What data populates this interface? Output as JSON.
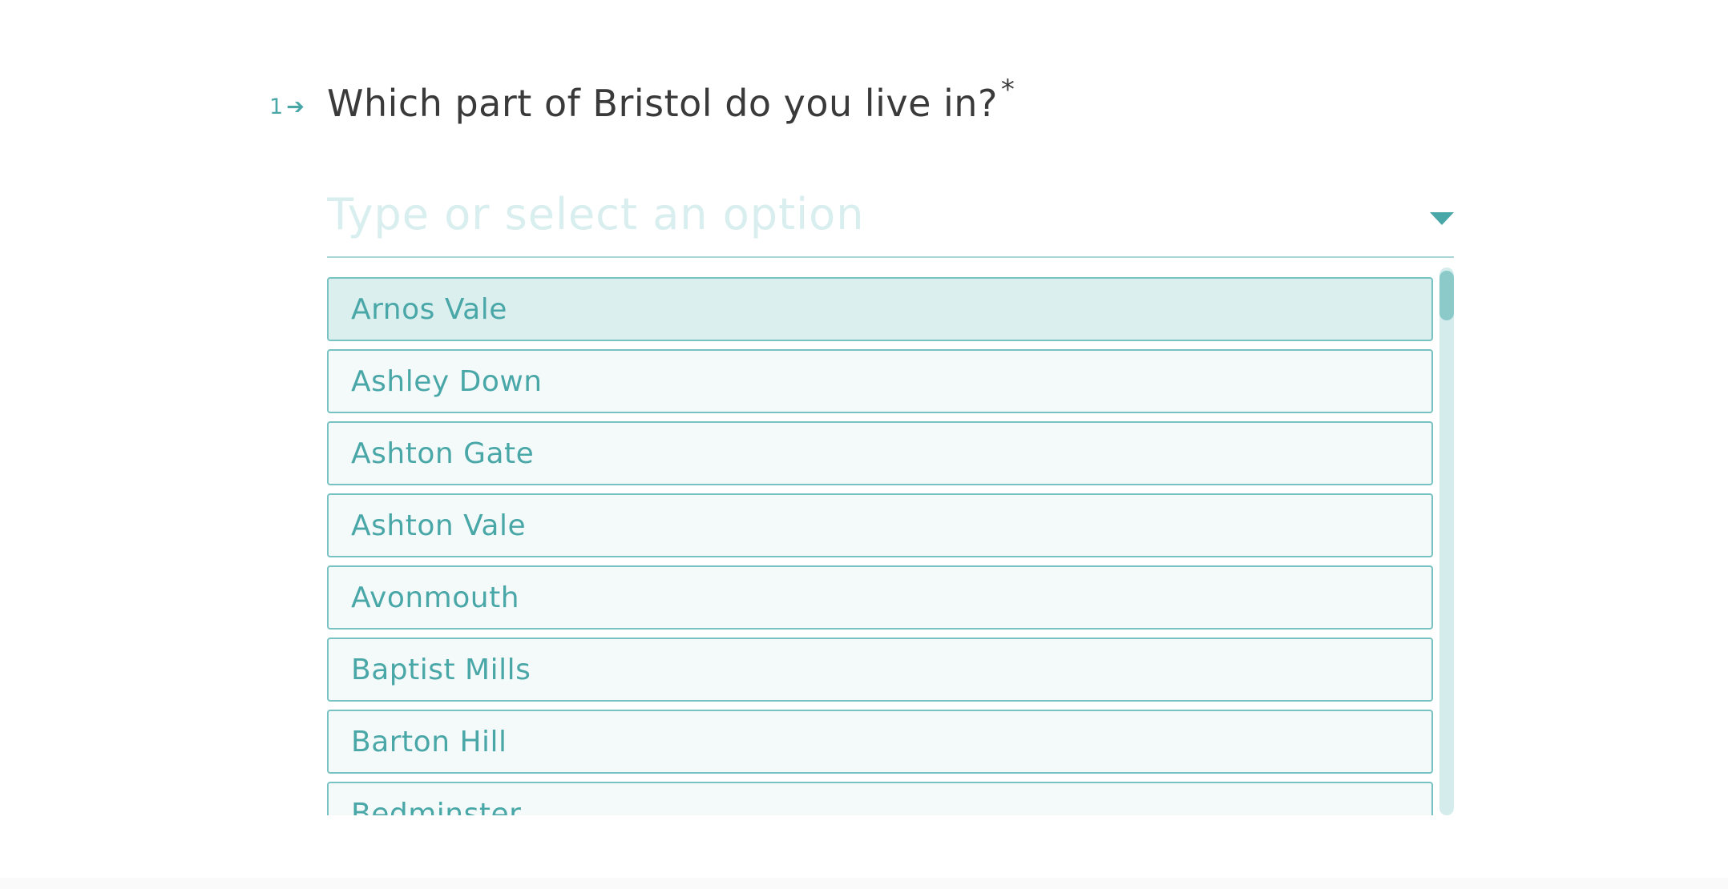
{
  "question": {
    "number": "1",
    "arrow": "➔",
    "text": "Which part of Bristol do you live in?",
    "required_mark": "*"
  },
  "input": {
    "placeholder": "Type or select an option",
    "value": ""
  },
  "dropdown": {
    "toggle_icon": "caret-down-icon"
  },
  "options": [
    {
      "label": "Arnos Vale",
      "selected": true
    },
    {
      "label": "Ashley Down",
      "selected": false
    },
    {
      "label": "Ashton Gate",
      "selected": false
    },
    {
      "label": "Ashton Vale",
      "selected": false
    },
    {
      "label": "Avonmouth",
      "selected": false
    },
    {
      "label": "Baptist Mills",
      "selected": false
    },
    {
      "label": "Barton Hill",
      "selected": false
    },
    {
      "label": "Bedminster",
      "selected": false
    }
  ],
  "colors": {
    "accent": "#4aa7a8",
    "option_bg": "#f4fafa",
    "option_selected_bg": "#dbefee",
    "option_border": "#79c2c2",
    "question_text": "#3a3a3a",
    "placeholder": "#d9eeee"
  }
}
